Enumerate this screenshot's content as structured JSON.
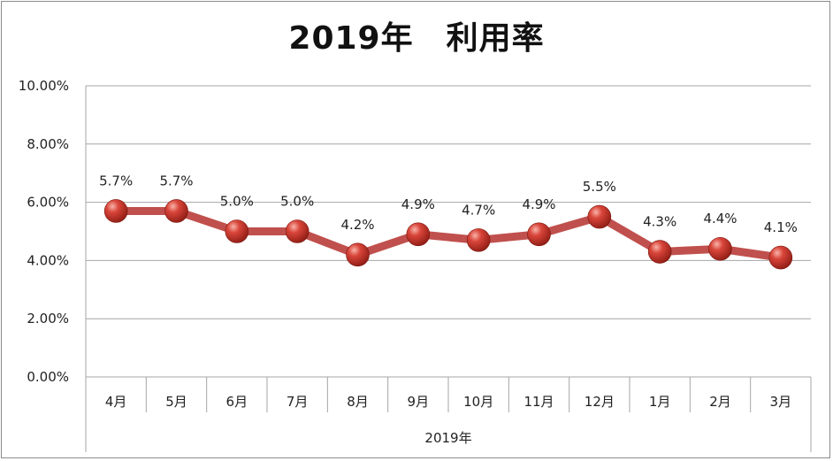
{
  "chart_data": {
    "type": "line",
    "title": "2019年　利用率",
    "xlabel": "2019年",
    "ylabel": "",
    "categories": [
      "4月",
      "5月",
      "6月",
      "7月",
      "8月",
      "9月",
      "10月",
      "11月",
      "12月",
      "1月",
      "2月",
      "3月"
    ],
    "values": [
      5.7,
      5.7,
      5.0,
      5.0,
      4.2,
      4.9,
      4.7,
      4.9,
      5.5,
      4.3,
      4.4,
      4.1
    ],
    "data_labels": [
      "5.7%",
      "5.7%",
      "5.0%",
      "5.0%",
      "4.2%",
      "4.9%",
      "4.7%",
      "4.9%",
      "5.5%",
      "4.3%",
      "4.4%",
      "4.1%"
    ],
    "yticks": [
      "0.00%",
      "2.00%",
      "4.00%",
      "6.00%",
      "8.00%",
      "10.00%"
    ],
    "ylim": [
      0,
      10
    ],
    "grid": true,
    "legend": "none",
    "colors": {
      "line": "#c0504d",
      "marker": "#c0392b",
      "grid": "#a6a6a6"
    }
  }
}
